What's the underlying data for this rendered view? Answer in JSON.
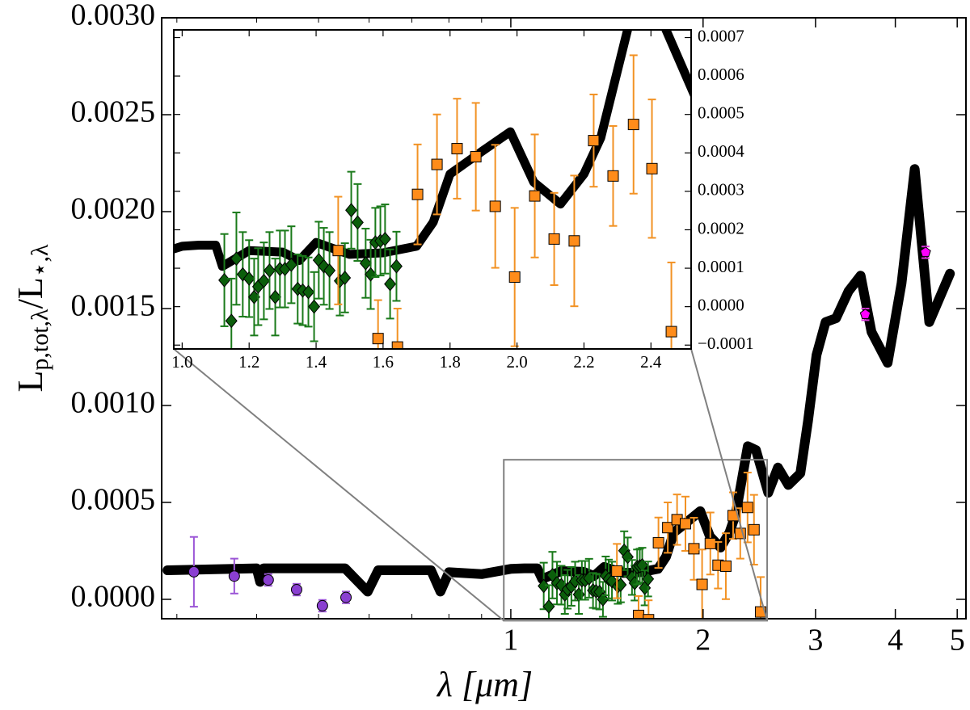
{
  "chart_data": {
    "type": "scatter",
    "xlabel": "λ [μm]",
    "ylabel": [
      "L",
      "p,tot,λ",
      "/L",
      "⋆,λ"
    ],
    "xscale": "log",
    "xlim": [
      0.284,
      5.16
    ],
    "ylim": [
      -0.0001,
      0.003
    ],
    "xticks": [
      1,
      2,
      3,
      4,
      5
    ],
    "xminor": [
      0.3,
      0.4,
      0.5,
      0.6,
      0.7,
      0.8,
      0.9
    ],
    "yticks": [
      {
        "value": 0,
        "label": "0.0000"
      },
      0.0005,
      {
        "value": 0.001,
        "label": "0.0010"
      },
      0.0015,
      {
        "value": 0.002,
        "label": "0.0020"
      },
      0.0025,
      {
        "value": 0.003,
        "label": "0.0030"
      }
    ],
    "model": {
      "color": "#000000",
      "x": [
        0.29,
        0.4,
        0.405,
        0.41,
        0.55,
        0.597,
        0.62,
        0.75,
        0.776,
        0.8,
        0.9,
        1.0,
        1.05,
        1.1,
        1.12,
        1.2,
        1.3,
        1.35,
        1.4,
        1.5,
        1.6,
        1.7,
        1.75,
        1.8,
        1.85,
        1.9,
        1.98,
        2.05,
        2.13,
        2.2,
        2.25,
        2.35,
        2.42,
        2.53,
        2.62,
        2.72,
        2.84,
        2.92,
        3.01,
        3.11,
        3.23,
        3.38,
        3.53,
        3.67,
        3.89,
        4.09,
        4.29,
        4.52,
        4.87
      ],
      "values": [
        0.00015,
        0.00016,
        9e-05,
        0.00016,
        0.00016,
        4e-05,
        0.00015,
        0.00015,
        4e-05,
        0.00014,
        0.00013,
        0.000157,
        0.00016,
        0.00016,
        0.000105,
        0.000146,
        0.000142,
        0.00012,
        0.000167,
        0.000136,
        0.00014,
        0.000157,
        0.00022,
        0.000345,
        0.000376,
        0.000407,
        0.000455,
        0.000324,
        0.000267,
        0.000345,
        0.000439,
        0.00079,
        0.00077,
        0.00055,
        0.00068,
        0.00059,
        0.00065,
        0.00092,
        0.00126,
        0.00143,
        0.00145,
        0.00159,
        0.00167,
        0.00138,
        0.00122,
        0.00163,
        0.00222,
        0.00143,
        0.00168
      ]
    },
    "series": [
      {
        "marker": "circle",
        "color": "#8a3fd1",
        "ecolor": "#9b55d6",
        "x": [
          0.319,
          0.369,
          0.417,
          0.462,
          0.507,
          0.552
        ],
        "values": [
          0.000142,
          0.00012,
          0.0001,
          5e-05,
          -3.3e-05,
          1e-05
        ],
        "errors": [
          0.00018,
          9e-05,
          3e-05,
          3e-05,
          3e-05,
          3e-05
        ]
      },
      {
        "marker": "diamond",
        "color": "#0b5e0b",
        "ecolor": "#1a7a1a",
        "x": [
          1.126,
          1.147,
          1.162,
          1.181,
          1.2,
          1.215,
          1.227,
          1.244,
          1.261,
          1.278,
          1.292,
          1.307,
          1.326,
          1.345,
          1.36,
          1.377,
          1.394,
          1.408,
          1.423,
          1.44,
          1.471,
          1.486,
          1.505,
          1.524,
          1.548,
          1.563,
          1.577,
          1.592,
          1.606,
          1.621,
          1.64
        ],
        "values": [
          6.9e-05,
          -3.7e-05,
          0.000125,
          8.4e-05,
          7.3e-05,
          2.5e-05,
          5.2e-05,
          6.7e-05,
          9.4e-05,
          2.5e-05,
          9.8e-05,
          9.8e-05,
          0.000109,
          4.6e-05,
          4.2e-05,
          3.8e-05,
          0,
          0.000121,
          0.000105,
          9.4e-05,
          6.7e-05,
          7.5e-05,
          0.000251,
          0.000219,
          0.000113,
          8.4e-05,
          0.000167,
          0.000171,
          0.000176,
          5.9e-05,
          0.000105
        ],
        "errors": [
          0.00012,
          0.00011,
          0.00012,
          0.00011,
          0.0001,
          0.0001,
          0.0001,
          0.0001,
          0.0001,
          0.0001,
          0.0001,
          0.0001,
          0.0001,
          9e-05,
          9e-05,
          9e-05,
          9e-05,
          0.0001,
          0.0001,
          0.0001,
          9e-05,
          9e-05,
          0.0001,
          0.0001,
          9e-05,
          9e-05,
          9e-05,
          9e-05,
          9e-05,
          9e-05,
          9e-05
        ]
      },
      {
        "marker": "square",
        "color": "#ff8c1a",
        "ecolor": "#f29224",
        "x": [
          1.466,
          1.585,
          1.643,
          1.703,
          1.761,
          1.821,
          1.877,
          1.935,
          1.993,
          2.053,
          2.111,
          2.171,
          2.229,
          2.287,
          2.348,
          2.403,
          2.461
        ],
        "values": [
          0.000146,
          -8.3e-05,
          -0.000105,
          0.000292,
          0.00037,
          0.000411,
          0.00039,
          0.000261,
          7.7e-05,
          0.000288,
          0.000176,
          0.000171,
          0.000432,
          0.00034,
          0.000474,
          0.000359,
          -6.5e-05
        ],
        "errors": [
          0.00014,
          0.0001,
          0.0001,
          0.00013,
          0.00013,
          0.00013,
          0.00014,
          0.00016,
          0.00018,
          0.00016,
          0.00012,
          0.00017,
          0.00012,
          0.00013,
          0.00018,
          0.00018,
          0.00018
        ]
      },
      {
        "marker": "pentagon",
        "color": "#ff00ff",
        "ecolor": "#d633d6",
        "x": [
          3.59,
          4.46
        ],
        "values": [
          0.00147,
          0.00179
        ],
        "errors": [
          3e-05,
          3e-05
        ]
      }
    ],
    "inset": {
      "xlim": [
        0.975,
        2.52
      ],
      "ylim": [
        -0.00011,
        0.00072
      ],
      "xticks": [
        {
          "value": 1,
          "label": "1.0"
        },
        1.2,
        1.4,
        1.6,
        1.8,
        {
          "value": 2,
          "label": "2.0"
        },
        2.2,
        2.4
      ],
      "yticks": [
        {
          "value": -0.0001,
          "label": "−0.0001"
        },
        {
          "value": 0,
          "label": "0.0000"
        },
        0.0001,
        0.0002,
        0.0003,
        0.0004,
        0.0005,
        0.0006,
        0.0007
      ]
    }
  }
}
